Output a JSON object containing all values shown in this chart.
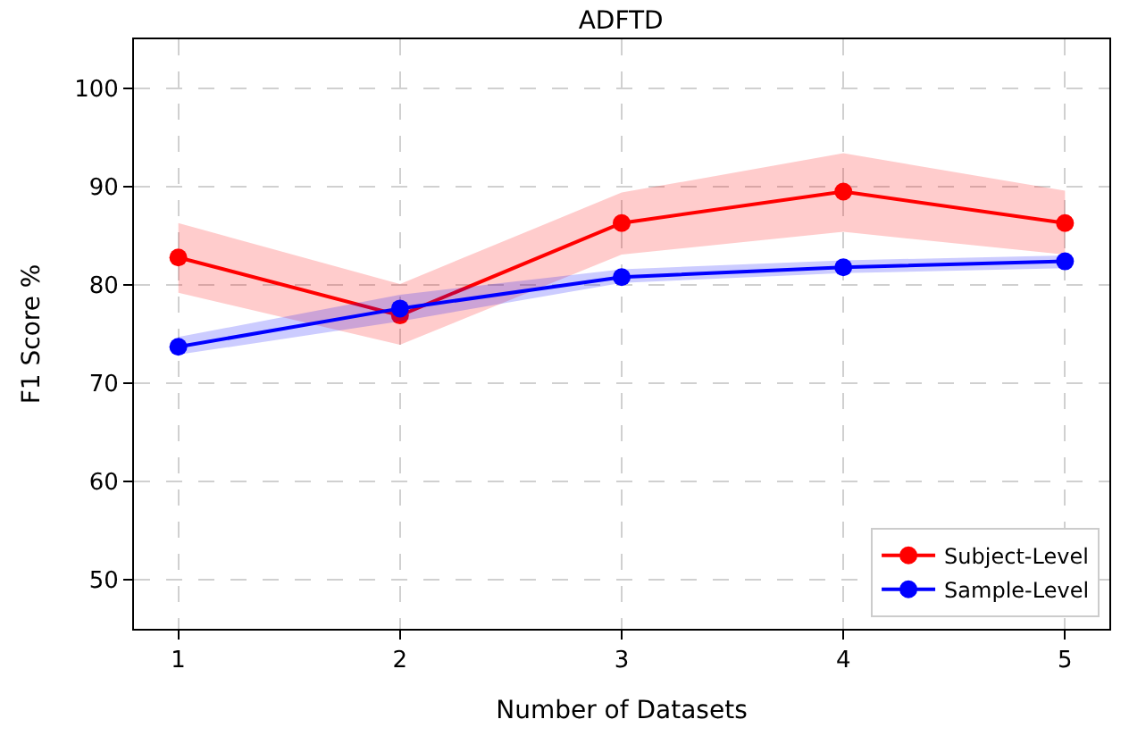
{
  "chart_data": {
    "type": "line",
    "title": "ADFTD",
    "xlabel": "Number of Datasets",
    "ylabel": "F1 Score %",
    "x": [
      1,
      2,
      3,
      4,
      5
    ],
    "series": [
      {
        "name": "Subject-Level",
        "color": "#ff0000",
        "values": [
          82.8,
          76.9,
          86.3,
          89.5,
          86.3
        ],
        "lower": [
          79.2,
          73.9,
          83.1,
          85.4,
          83.1
        ],
        "upper": [
          86.3,
          80.1,
          89.4,
          93.4,
          89.6
        ]
      },
      {
        "name": "Sample-Level",
        "color": "#0000ff",
        "values": [
          73.7,
          77.6,
          80.8,
          81.8,
          82.4
        ],
        "lower": [
          72.9,
          76.3,
          80.2,
          81.2,
          81.7
        ],
        "upper": [
          74.7,
          79.0,
          81.6,
          82.5,
          83.0
        ]
      }
    ],
    "xlim": [
      0.8,
      5.2
    ],
    "xticks": [
      1,
      2,
      3,
      4,
      5
    ],
    "ylim": [
      45,
      105
    ],
    "yticks": [
      50,
      60,
      70,
      80,
      90,
      100
    ],
    "grid": true,
    "legend": "bottom right",
    "marker": "circle",
    "line_style": "solid"
  }
}
